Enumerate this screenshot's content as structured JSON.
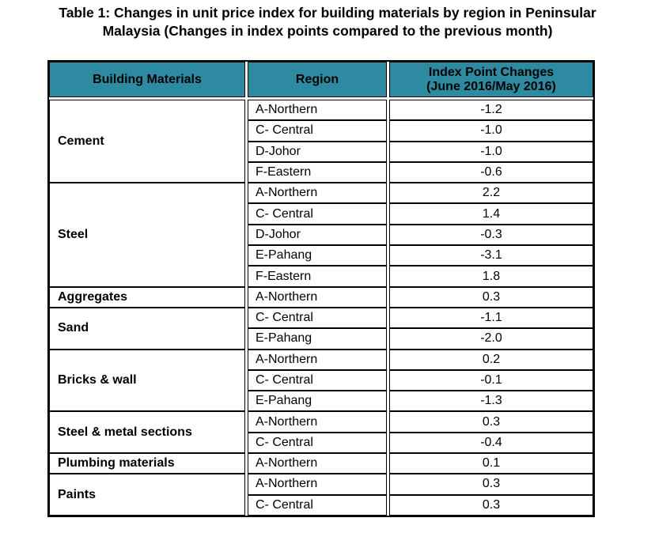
{
  "title": {
    "line1": "Table 1: Changes in unit price index for building materials by region in Peninsular",
    "line2": "Malaysia (Changes in index points compared to the previous month)"
  },
  "table": {
    "headers": {
      "material": "Building Materials",
      "region": "Region",
      "change_line1": "Index Point Changes",
      "change_line2": "(June 2016/May 2016)"
    },
    "groups": [
      {
        "material": "Cement",
        "rows": [
          {
            "region": "A-Northern",
            "value": "-1.2"
          },
          {
            "region": "C- Central",
            "value": "-1.0"
          },
          {
            "region": "D-Johor",
            "value": "-1.0"
          },
          {
            "region": "F-Eastern",
            "value": "-0.6"
          }
        ]
      },
      {
        "material": "Steel",
        "rows": [
          {
            "region": "A-Northern",
            "value": "2.2"
          },
          {
            "region": "C- Central",
            "value": "1.4"
          },
          {
            "region": "D-Johor",
            "value": "-0.3"
          },
          {
            "region": "E-Pahang",
            "value": "-3.1"
          },
          {
            "region": "F-Eastern",
            "value": "1.8"
          }
        ]
      },
      {
        "material": "Aggregates",
        "rows": [
          {
            "region": "A-Northern",
            "value": "0.3"
          }
        ]
      },
      {
        "material": "Sand",
        "rows": [
          {
            "region": "C- Central",
            "value": "-1.1"
          },
          {
            "region": "E-Pahang",
            "value": "-2.0"
          }
        ]
      },
      {
        "material": "Bricks & wall",
        "rows": [
          {
            "region": "A-Northern",
            "value": "0.2"
          },
          {
            "region": "C- Central",
            "value": "-0.1"
          },
          {
            "region": "E-Pahang",
            "value": "-1.3"
          }
        ]
      },
      {
        "material": "Steel & metal sections",
        "rows": [
          {
            "region": "A-Northern",
            "value": "0.3"
          },
          {
            "region": "C- Central",
            "value": "-0.4"
          }
        ]
      },
      {
        "material": "Plumbing materials",
        "rows": [
          {
            "region": "A-Northern",
            "value": "0.1"
          }
        ]
      },
      {
        "material": "Paints",
        "rows": [
          {
            "region": "A-Northern",
            "value": "0.3"
          },
          {
            "region": "C- Central",
            "value": "0.3"
          }
        ]
      }
    ]
  },
  "colors": {
    "header_background": "#2e8aa0",
    "border": "#000000"
  }
}
